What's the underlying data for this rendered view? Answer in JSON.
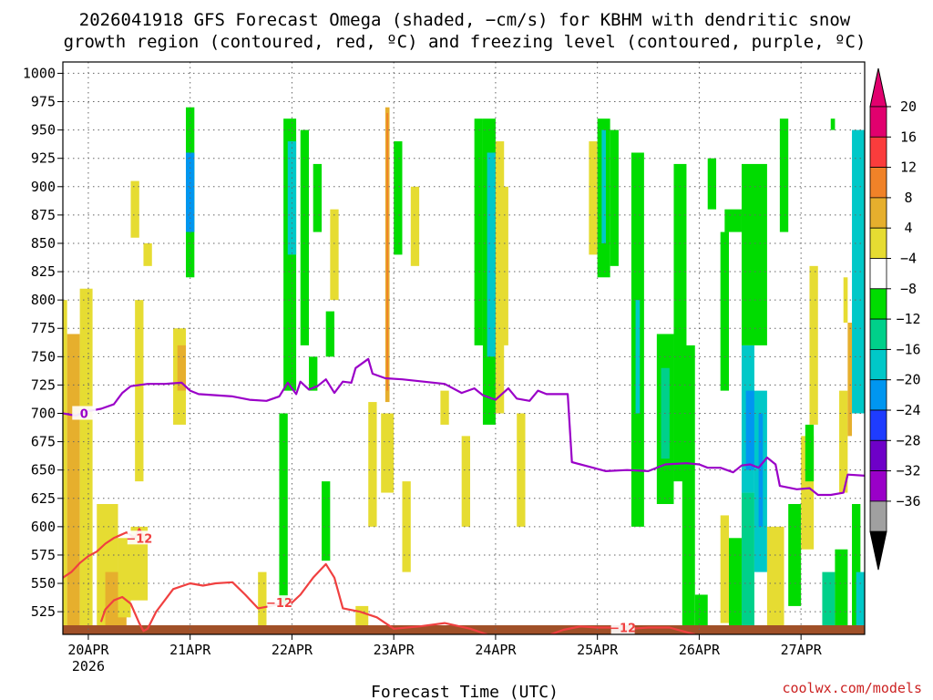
{
  "chart_data": {
    "type": "heatmap",
    "title_line1": "2026041918 GFS Forecast Omega (shaded, −cm/s) for KBHM with dendritic snow",
    "title_line2": "growth region (contoured, red, ºC) and freezing level (contoured, purple, ºC)",
    "xlabel": "Forecast Time (UTC)",
    "credit": "coolwx.com/models",
    "x_range_hours": [
      0,
      189
    ],
    "y_range_hpa": [
      1010,
      505
    ],
    "y_ticks": [
      525,
      550,
      575,
      600,
      625,
      650,
      675,
      700,
      725,
      750,
      775,
      800,
      825,
      850,
      875,
      900,
      925,
      950,
      975,
      1000
    ],
    "x_ticks": [
      {
        "label": "20APR",
        "sub": "2026",
        "hour": 6
      },
      {
        "label": "21APR",
        "sub": "",
        "hour": 30
      },
      {
        "label": "22APR",
        "sub": "",
        "hour": 54
      },
      {
        "label": "23APR",
        "sub": "",
        "hour": 78
      },
      {
        "label": "24APR",
        "sub": "",
        "hour": 102
      },
      {
        "label": "25APR",
        "sub": "",
        "hour": 126
      },
      {
        "label": "26APR",
        "sub": "",
        "hour": 150
      },
      {
        "label": "27APR",
        "sub": "",
        "hour": 174
      }
    ],
    "colorbar": {
      "colors": [
        "#a0a0a0",
        "#9a00c8",
        "#6e00c8",
        "#1e3cff",
        "#0096f0",
        "#00c8c8",
        "#00d08a",
        "#00dc00",
        "#ffffff",
        "#e6dc32",
        "#e6af2d",
        "#f08228",
        "#fa3c3c",
        "#e1006e"
      ],
      "labels": [
        "20",
        "16",
        "12",
        "8",
        "4",
        "−4",
        "−8",
        "−12",
        "−16",
        "−20",
        "−24",
        "−28",
        "−32",
        "−36"
      ],
      "top_arrow_color": "#e1006e",
      "bottom_arrow_color": "#000000"
    },
    "cells": [
      {
        "x0": 0,
        "x1": 1,
        "p0": 510,
        "p1": 800,
        "color": "#e6dc32"
      },
      {
        "x0": 1,
        "x1": 4,
        "p0": 510,
        "p1": 770,
        "color": "#e6af2d"
      },
      {
        "x0": 4,
        "x1": 7,
        "p0": 510,
        "p1": 810,
        "color": "#e6dc32"
      },
      {
        "x0": 8,
        "x1": 13,
        "p0": 510,
        "p1": 620,
        "color": "#e6dc32"
      },
      {
        "x0": 10,
        "x1": 15,
        "p0": 510,
        "p1": 560,
        "color": "#e6af2d"
      },
      {
        "x0": 13,
        "x1": 16,
        "p0": 520,
        "p1": 590,
        "color": "#e6dc32"
      },
      {
        "x0": 16,
        "x1": 20,
        "p0": 535,
        "p1": 600,
        "color": "#e6dc32"
      },
      {
        "x0": 17,
        "x1": 19,
        "p0": 640,
        "p1": 800,
        "color": "#e6dc32"
      },
      {
        "x0": 16,
        "x1": 18,
        "p0": 855,
        "p1": 905,
        "color": "#e6dc32"
      },
      {
        "x0": 19,
        "x1": 21,
        "p0": 830,
        "p1": 850,
        "color": "#e6dc32"
      },
      {
        "x0": 26,
        "x1": 29,
        "p0": 690,
        "p1": 775,
        "color": "#e6dc32"
      },
      {
        "x0": 27,
        "x1": 29,
        "p0": 720,
        "p1": 760,
        "color": "#e6af2d"
      },
      {
        "x0": 29,
        "x1": 31,
        "p0": 820,
        "p1": 970,
        "color": "#00dc00"
      },
      {
        "x0": 29,
        "x1": 31,
        "p0": 860,
        "p1": 930,
        "color": "#0096f0"
      },
      {
        "x0": 46,
        "x1": 48,
        "p0": 510,
        "p1": 560,
        "color": "#e6dc32"
      },
      {
        "x0": 51,
        "x1": 53,
        "p0": 530,
        "p1": 700,
        "color": "#00dc00"
      },
      {
        "x0": 52,
        "x1": 55,
        "p0": 720,
        "p1": 960,
        "color": "#00dc00"
      },
      {
        "x0": 53,
        "x1": 55,
        "p0": 840,
        "p1": 940,
        "color": "#00c8c8"
      },
      {
        "x0": 56,
        "x1": 58,
        "p0": 760,
        "p1": 950,
        "color": "#00dc00"
      },
      {
        "x0": 58,
        "x1": 60,
        "p0": 720,
        "p1": 750,
        "color": "#00dc00"
      },
      {
        "x0": 59,
        "x1": 61,
        "p0": 860,
        "p1": 920,
        "color": "#00dc00"
      },
      {
        "x0": 61,
        "x1": 63,
        "p0": 570,
        "p1": 640,
        "color": "#00dc00"
      },
      {
        "x0": 62,
        "x1": 64,
        "p0": 750,
        "p1": 790,
        "color": "#00dc00"
      },
      {
        "x0": 63,
        "x1": 65,
        "p0": 800,
        "p1": 880,
        "color": "#e6dc32"
      },
      {
        "x0": 69,
        "x1": 72,
        "p0": 510,
        "p1": 530,
        "color": "#e6dc32"
      },
      {
        "x0": 72,
        "x1": 74,
        "p0": 600,
        "p1": 710,
        "color": "#e6dc32"
      },
      {
        "x0": 75,
        "x1": 78,
        "p0": 630,
        "p1": 700,
        "color": "#e6dc32"
      },
      {
        "x0": 76,
        "x1": 77,
        "p0": 710,
        "p1": 970,
        "color": "#e6af2d"
      },
      {
        "x0": 76.3,
        "x1": 76.7,
        "p0": 720,
        "p1": 965,
        "color": "#f08228"
      },
      {
        "x0": 78,
        "x1": 80,
        "p0": 840,
        "p1": 940,
        "color": "#00dc00"
      },
      {
        "x0": 80,
        "x1": 82,
        "p0": 560,
        "p1": 640,
        "color": "#e6dc32"
      },
      {
        "x0": 82,
        "x1": 84,
        "p0": 830,
        "p1": 900,
        "color": "#e6dc32"
      },
      {
        "x0": 89,
        "x1": 91,
        "p0": 690,
        "p1": 720,
        "color": "#e6dc32"
      },
      {
        "x0": 94,
        "x1": 96,
        "p0": 600,
        "p1": 680,
        "color": "#e6dc32"
      },
      {
        "x0": 97,
        "x1": 99,
        "p0": 760,
        "p1": 960,
        "color": "#00dc00"
      },
      {
        "x0": 99,
        "x1": 102,
        "p0": 690,
        "p1": 960,
        "color": "#00dc00"
      },
      {
        "x0": 100,
        "x1": 102,
        "p0": 750,
        "p1": 930,
        "color": "#00c8c8"
      },
      {
        "x0": 102,
        "x1": 104,
        "p0": 700,
        "p1": 940,
        "color": "#e6dc32"
      },
      {
        "x0": 103,
        "x1": 105,
        "p0": 760,
        "p1": 900,
        "color": "#e6dc32"
      },
      {
        "x0": 107,
        "x1": 109,
        "p0": 600,
        "p1": 700,
        "color": "#e6dc32"
      },
      {
        "x0": 124,
        "x1": 126,
        "p0": 840,
        "p1": 940,
        "color": "#e6dc32"
      },
      {
        "x0": 126,
        "x1": 129,
        "p0": 820,
        "p1": 960,
        "color": "#00dc00"
      },
      {
        "x0": 127,
        "x1": 128,
        "p0": 850,
        "p1": 950,
        "color": "#00c8c8"
      },
      {
        "x0": 129,
        "x1": 131,
        "p0": 830,
        "p1": 950,
        "color": "#00dc00"
      },
      {
        "x0": 134,
        "x1": 137,
        "p0": 600,
        "p1": 930,
        "color": "#00dc00"
      },
      {
        "x0": 135,
        "x1": 136,
        "p0": 700,
        "p1": 800,
        "color": "#00c8c8"
      },
      {
        "x0": 140,
        "x1": 144,
        "p0": 620,
        "p1": 770,
        "color": "#00dc00"
      },
      {
        "x0": 141,
        "x1": 143,
        "p0": 660,
        "p1": 740,
        "color": "#00d08a"
      },
      {
        "x0": 144,
        "x1": 147,
        "p0": 640,
        "p1": 920,
        "color": "#00dc00"
      },
      {
        "x0": 146,
        "x1": 149,
        "p0": 510,
        "p1": 760,
        "color": "#00dc00"
      },
      {
        "x0": 149,
        "x1": 152,
        "p0": 510,
        "p1": 540,
        "color": "#00dc00"
      },
      {
        "x0": 152,
        "x1": 154,
        "p0": 880,
        "p1": 925,
        "color": "#00dc00"
      },
      {
        "x0": 155,
        "x1": 157,
        "p0": 515,
        "p1": 610,
        "color": "#e6dc32"
      },
      {
        "x0": 155,
        "x1": 157,
        "p0": 720,
        "p1": 860,
        "color": "#00dc00"
      },
      {
        "x0": 156,
        "x1": 160,
        "p0": 860,
        "p1": 880,
        "color": "#00dc00"
      },
      {
        "x0": 157,
        "x1": 160,
        "p0": 510,
        "p1": 590,
        "color": "#00dc00"
      },
      {
        "x0": 160,
        "x1": 163,
        "p0": 510,
        "p1": 630,
        "color": "#00d08a"
      },
      {
        "x0": 160,
        "x1": 163,
        "p0": 630,
        "p1": 760,
        "color": "#00c8c8"
      },
      {
        "x0": 161,
        "x1": 163,
        "p0": 650,
        "p1": 720,
        "color": "#0096f0"
      },
      {
        "x0": 160,
        "x1": 166,
        "p0": 760,
        "p1": 920,
        "color": "#00dc00"
      },
      {
        "x0": 163,
        "x1": 166,
        "p0": 560,
        "p1": 720,
        "color": "#00c8c8"
      },
      {
        "x0": 164,
        "x1": 165,
        "p0": 600,
        "p1": 700,
        "color": "#0096f0"
      },
      {
        "x0": 166,
        "x1": 170,
        "p0": 510,
        "p1": 600,
        "color": "#e6dc32"
      },
      {
        "x0": 169,
        "x1": 171,
        "p0": 860,
        "p1": 960,
        "color": "#00dc00"
      },
      {
        "x0": 171,
        "x1": 174,
        "p0": 530,
        "p1": 620,
        "color": "#00dc00"
      },
      {
        "x0": 174,
        "x1": 177,
        "p0": 580,
        "p1": 680,
        "color": "#e6dc32"
      },
      {
        "x0": 175,
        "x1": 177,
        "p0": 640,
        "p1": 690,
        "color": "#00dc00"
      },
      {
        "x0": 176,
        "x1": 178,
        "p0": 690,
        "p1": 830,
        "color": "#e6dc32"
      },
      {
        "x0": 179,
        "x1": 182,
        "p0": 510,
        "p1": 560,
        "color": "#00d08a"
      },
      {
        "x0": 182,
        "x1": 185,
        "p0": 510,
        "p1": 580,
        "color": "#00dc00"
      },
      {
        "x0": 183,
        "x1": 185,
        "p0": 630,
        "p1": 720,
        "color": "#e6dc32"
      },
      {
        "x0": 185,
        "x1": 186,
        "p0": 680,
        "p1": 780,
        "color": "#e6af2d"
      },
      {
        "x0": 184,
        "x1": 185,
        "p0": 780,
        "p1": 820,
        "color": "#e6dc32"
      },
      {
        "x0": 186,
        "x1": 188,
        "p0": 510,
        "p1": 620,
        "color": "#00dc00"
      },
      {
        "x0": 187,
        "x1": 189,
        "p0": 510,
        "p1": 560,
        "color": "#00c8c8"
      },
      {
        "x0": 186,
        "x1": 189,
        "p0": 700,
        "p1": 950,
        "color": "#00c8c8"
      },
      {
        "x0": 181,
        "x1": 182,
        "p0": 950,
        "p1": 960,
        "color": "#00dc00"
      }
    ],
    "contours": [
      {
        "name": "dendritic -12C upper",
        "color": "#f04040",
        "label": "−12",
        "label_at": [
          51,
          533
        ],
        "points": [
          [
            9,
            516
          ],
          [
            10,
            527
          ],
          [
            12,
            535
          ],
          [
            14,
            538
          ],
          [
            16,
            532
          ],
          [
            18,
            515
          ],
          [
            19,
            508
          ],
          [
            20,
            510
          ],
          [
            22,
            525
          ],
          [
            26,
            545
          ],
          [
            30,
            550
          ],
          [
            33,
            548
          ],
          [
            36,
            550
          ],
          [
            40,
            551
          ],
          [
            43,
            540
          ],
          [
            46,
            528
          ],
          [
            49,
            530
          ],
          [
            51,
            532
          ],
          [
            54,
            533
          ],
          [
            56,
            540
          ],
          [
            59,
            555
          ],
          [
            62,
            567
          ],
          [
            64,
            555
          ],
          [
            66,
            528
          ],
          [
            70,
            525
          ],
          [
            74,
            520
          ],
          [
            78,
            510
          ],
          [
            84,
            512
          ],
          [
            90,
            515
          ],
          [
            96,
            510
          ],
          [
            100,
            505
          ]
        ]
      },
      {
        "name": "dendritic -12C lower",
        "color": "#f04040",
        "label": "−12",
        "label_at": [
          18,
          590
        ],
        "points": [
          [
            0,
            555
          ],
          [
            2,
            560
          ],
          [
            4,
            568
          ],
          [
            6,
            574
          ],
          [
            8,
            578
          ],
          [
            10,
            585
          ],
          [
            12,
            590
          ],
          [
            15,
            595
          ],
          [
            17,
            590
          ],
          [
            18,
            598
          ],
          [
            20,
            585
          ]
        ]
      },
      {
        "name": "dendritic -12C right",
        "color": "#f04040",
        "label": "−12",
        "label_at": [
          132,
          511
        ],
        "points": [
          [
            115,
            505
          ],
          [
            118,
            509
          ],
          [
            122,
            512
          ],
          [
            126,
            511
          ],
          [
            130,
            511
          ],
          [
            134,
            510
          ],
          [
            138,
            511
          ],
          [
            143,
            511
          ],
          [
            146,
            508
          ],
          [
            149,
            505
          ]
        ]
      },
      {
        "name": "freezing level 0C",
        "color": "#9a00c8",
        "label": "0",
        "label_at": [
          5,
          700
        ],
        "points": [
          [
            0,
            700
          ],
          [
            3,
            698
          ],
          [
            6,
            702
          ],
          [
            9,
            704
          ],
          [
            12,
            708
          ],
          [
            14,
            718
          ],
          [
            16,
            724
          ],
          [
            20,
            726
          ],
          [
            24,
            726
          ],
          [
            28,
            727
          ],
          [
            30,
            720
          ],
          [
            32,
            717
          ],
          [
            36,
            716
          ],
          [
            40,
            715
          ],
          [
            44,
            712
          ],
          [
            48,
            711
          ],
          [
            51,
            715
          ],
          [
            53,
            727
          ],
          [
            55,
            717
          ],
          [
            56,
            728
          ],
          [
            58,
            721
          ],
          [
            60,
            724
          ],
          [
            62,
            730
          ],
          [
            64,
            718
          ],
          [
            66,
            728
          ],
          [
            68,
            727
          ],
          [
            69,
            740
          ],
          [
            72,
            748
          ],
          [
            73,
            735
          ],
          [
            76,
            731
          ],
          [
            80,
            730
          ],
          [
            85,
            728
          ],
          [
            90,
            726
          ],
          [
            94,
            718
          ],
          [
            97,
            722
          ],
          [
            99,
            716
          ],
          [
            102,
            712
          ],
          [
            105,
            722
          ],
          [
            107,
            713
          ],
          [
            110,
            711
          ],
          [
            112,
            720
          ],
          [
            114,
            717
          ],
          [
            117,
            717
          ],
          [
            119,
            717
          ],
          [
            120,
            657
          ],
          [
            125,
            652
          ],
          [
            128,
            649
          ],
          [
            133,
            650
          ],
          [
            138,
            649
          ],
          [
            142,
            655
          ],
          [
            147,
            656
          ],
          [
            150,
            655
          ],
          [
            152,
            652
          ],
          [
            155,
            652
          ],
          [
            158,
            648
          ],
          [
            160,
            654
          ],
          [
            162,
            655
          ],
          [
            164,
            652
          ],
          [
            166,
            661
          ],
          [
            168,
            655
          ],
          [
            169,
            636
          ],
          [
            173,
            633
          ],
          [
            176,
            634
          ],
          [
            178,
            628
          ],
          [
            181,
            628
          ],
          [
            184,
            630
          ],
          [
            185,
            646
          ],
          [
            189,
            645
          ]
        ]
      }
    ],
    "ground": {
      "color": "#a05028"
    }
  }
}
